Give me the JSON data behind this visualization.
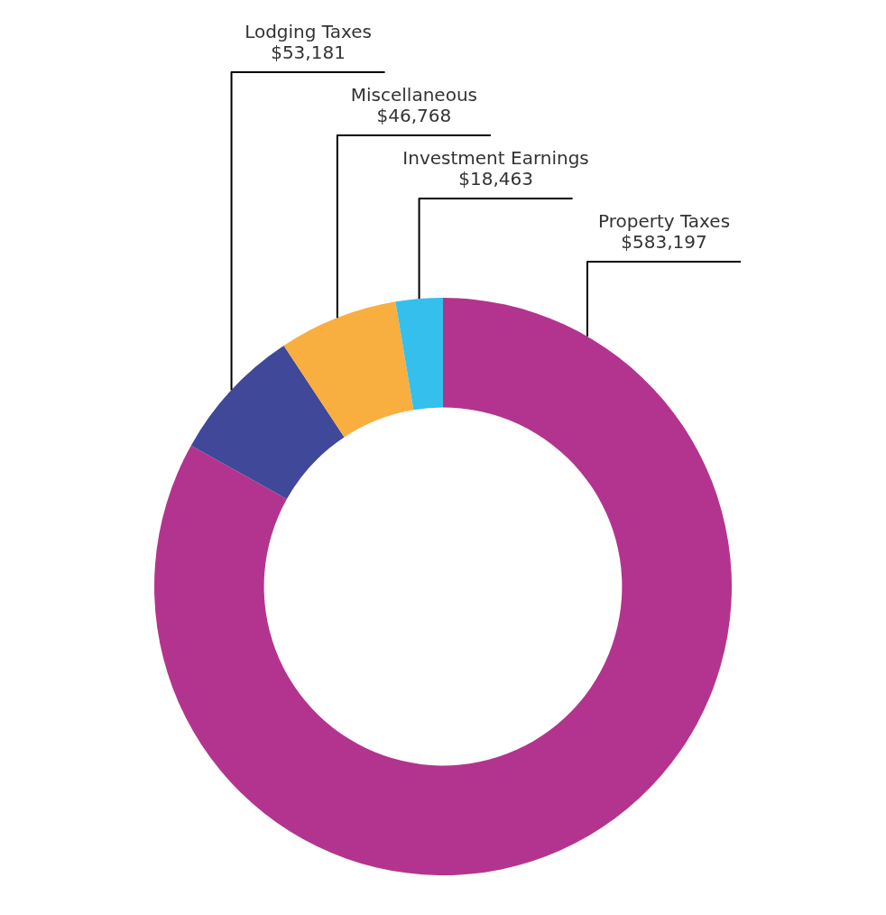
{
  "chart_data": {
    "type": "donut",
    "categories": [
      "Property Taxes",
      "Lodging Taxes",
      "Miscellaneous",
      "Investment Earnings"
    ],
    "values": [
      583197,
      53181,
      46768,
      18463
    ],
    "value_labels": [
      "$583,197",
      "$53,181",
      "$46,768",
      "$18,463"
    ],
    "colors": [
      "#b3348e",
      "#404899",
      "#f9ae40",
      "#35bfec"
    ],
    "legend": false
  }
}
